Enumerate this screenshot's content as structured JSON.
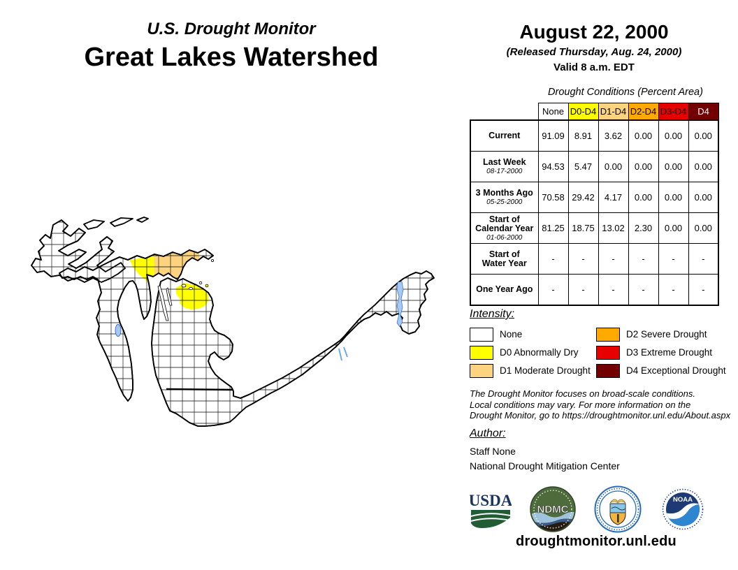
{
  "header": {
    "supertitle": "U.S. Drought Monitor",
    "title": "Great Lakes Watershed",
    "date": "August 22, 2000",
    "released": "(Released Thursday, Aug. 24, 2000)",
    "valid": "Valid 8 a.m. EDT"
  },
  "table": {
    "caption": "Drought Conditions (Percent Area)",
    "columns": [
      "None",
      "D0-D4",
      "D1-D4",
      "D2-D4",
      "D3-D4",
      "D4"
    ],
    "column_colors": [
      "#FFFFFF",
      "#FFFF00",
      "#FCD37F",
      "#FFAA00",
      "#E60000",
      "#730000"
    ],
    "column_text_colors": [
      "#000000",
      "#000000",
      "#000000",
      "#000000",
      "#000000",
      "#FFFFFF"
    ],
    "rows": [
      {
        "label_lines": [
          "Current"
        ],
        "sublabel": "",
        "values": [
          "91.09",
          "8.91",
          "3.62",
          "0.00",
          "0.00",
          "0.00"
        ]
      },
      {
        "label_lines": [
          "Last Week"
        ],
        "sublabel": "08-17-2000",
        "values": [
          "94.53",
          "5.47",
          "0.00",
          "0.00",
          "0.00",
          "0.00"
        ]
      },
      {
        "label_lines": [
          "3 Months Ago"
        ],
        "sublabel": "05-25-2000",
        "values": [
          "70.58",
          "29.42",
          "4.17",
          "0.00",
          "0.00",
          "0.00"
        ]
      },
      {
        "label_lines": [
          "Start of",
          "Calendar Year"
        ],
        "sublabel": "01-06-2000",
        "values": [
          "81.25",
          "18.75",
          "13.02",
          "2.30",
          "0.00",
          "0.00"
        ]
      },
      {
        "label_lines": [
          "Start of",
          "Water Year"
        ],
        "sublabel": "",
        "values": [
          "-",
          "-",
          "-",
          "-",
          "-",
          "-"
        ]
      },
      {
        "label_lines": [
          "One Year Ago"
        ],
        "sublabel": "",
        "values": [
          "-",
          "-",
          "-",
          "-",
          "-",
          "-"
        ]
      }
    ]
  },
  "legend": {
    "heading": "Intensity:",
    "items": [
      {
        "label": "None",
        "color": "#FFFFFF"
      },
      {
        "label": "D0 Abnormally Dry",
        "color": "#FFFF00"
      },
      {
        "label": "D1 Moderate Drought",
        "color": "#FCD37F"
      },
      {
        "label": "D2 Severe Drought",
        "color": "#FFAA00"
      },
      {
        "label": "D3 Extreme Drought",
        "color": "#E60000"
      },
      {
        "label": "D4 Exceptional Drought",
        "color": "#730000"
      }
    ]
  },
  "disclaimer": {
    "lines": [
      "The Drought Monitor focuses on broad-scale conditions.",
      "Local conditions may vary. For more information on the",
      "Drought Monitor, go to https://droughtmonitor.unl.edu/About.aspx"
    ]
  },
  "author": {
    "heading": "Author:",
    "name": "Staff None",
    "org": "National Drought Mitigation Center"
  },
  "logos": {
    "usda_text": "USDA",
    "ndmc_text": "NDMC",
    "noaa_text": "NOAA"
  },
  "footer": {
    "url": "droughtmonitor.unl.edu"
  },
  "map": {
    "levels_shown": [
      "D0",
      "D1"
    ],
    "d0_color": "#FFFF00",
    "d1_color": "#FCD37F",
    "water_color": "#A6C8F2",
    "outline_color": "#000000"
  }
}
